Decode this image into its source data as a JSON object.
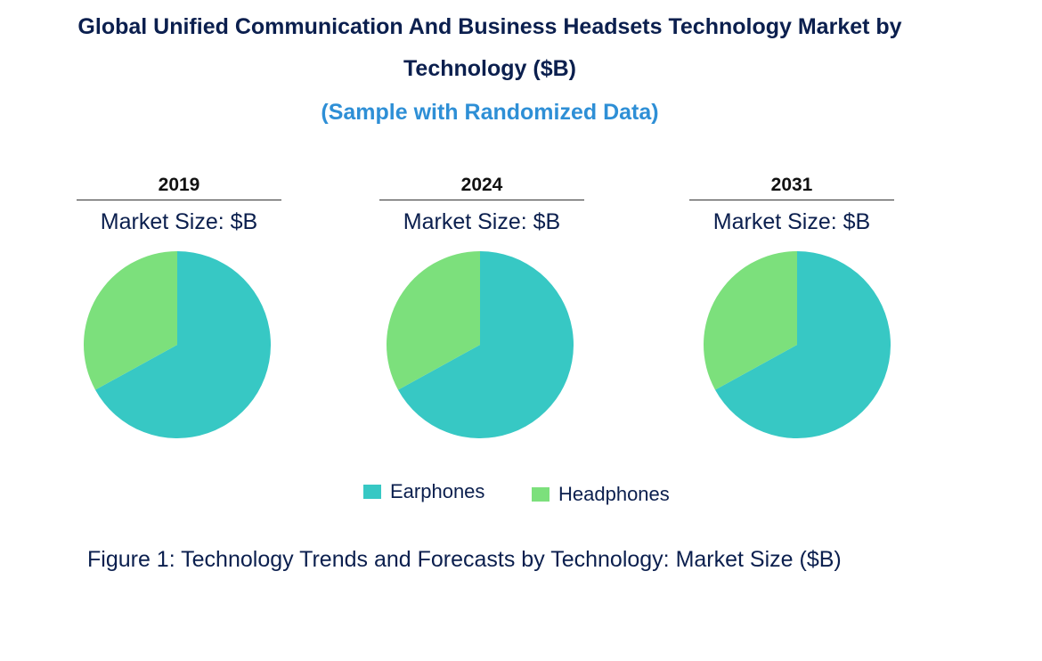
{
  "title_line1": "Global Unified Communication And Business Headsets Technology Market by",
  "title_line2": "Technology ($B)",
  "subtitle": "(Sample with Randomized Data)",
  "caption": "Figure 1: Technology Trends and Forecasts by Technology: Market Size ($B)",
  "colors": {
    "Earphones": "#37c8c4",
    "Headphones": "#7ce07c"
  },
  "chart_data": [
    {
      "type": "pie",
      "title": "2019",
      "subtitle": "Market Size: $B",
      "labels": [
        "Earphones",
        "Headphones"
      ],
      "values": [
        67,
        33
      ]
    },
    {
      "type": "pie",
      "title": "2024",
      "subtitle": "Market Size: $B",
      "labels": [
        "Earphones",
        "Headphones"
      ],
      "values": [
        67,
        33
      ]
    },
    {
      "type": "pie",
      "title": "2031",
      "subtitle": "Market Size: $B",
      "labels": [
        "Earphones",
        "Headphones"
      ],
      "values": [
        67,
        33
      ]
    }
  ],
  "legend": [
    {
      "label": "Earphones"
    },
    {
      "label": "Headphones"
    }
  ]
}
